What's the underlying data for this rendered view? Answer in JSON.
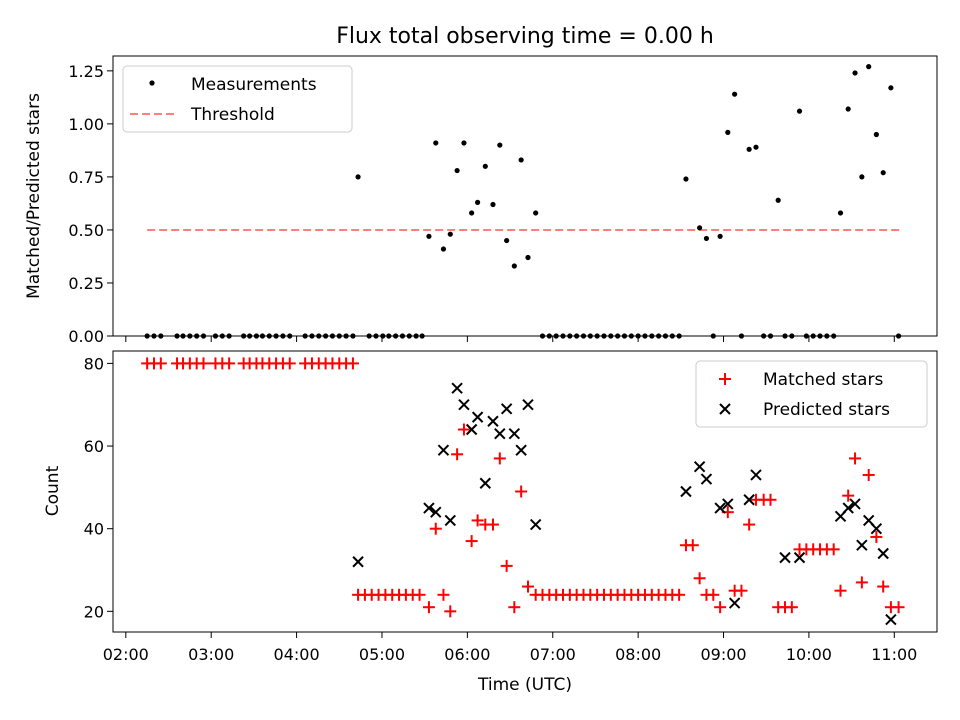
{
  "chart_data": [
    {
      "type": "scatter",
      "title": "Flux total observing time = 0.00 h",
      "xlabel": "",
      "ylabel": "Matched/Predicted stars",
      "xlim": [
        1.85,
        11.5
      ],
      "ylim": [
        0,
        1.32
      ],
      "yticks": [
        0,
        0.25,
        0.5,
        0.75,
        1.0,
        1.25
      ],
      "ytick_labels": [
        "0.00",
        "0.25",
        "0.50",
        "0.75",
        "1.00",
        "1.25"
      ],
      "legend": {
        "position": "top-left",
        "entries": [
          "Measurements",
          "Threshold"
        ]
      },
      "threshold": {
        "name": "Threshold",
        "value": 0.5,
        "x_range": [
          2.25,
          11.1
        ],
        "color": "#ff7f7f"
      },
      "series": [
        {
          "name": "Measurements",
          "color": "#000000",
          "points": [
            [
              2.25,
              0
            ],
            [
              2.33,
              0
            ],
            [
              2.41,
              0
            ],
            [
              2.6,
              0
            ],
            [
              2.67,
              0
            ],
            [
              2.75,
              0
            ],
            [
              2.83,
              0
            ],
            [
              2.91,
              0
            ],
            [
              3.05,
              0
            ],
            [
              3.13,
              0
            ],
            [
              3.21,
              0
            ],
            [
              3.38,
              0
            ],
            [
              3.45,
              0
            ],
            [
              3.53,
              0
            ],
            [
              3.6,
              0
            ],
            [
              3.68,
              0
            ],
            [
              3.76,
              0
            ],
            [
              3.84,
              0
            ],
            [
              3.92,
              0
            ],
            [
              4.1,
              0
            ],
            [
              4.18,
              0
            ],
            [
              4.26,
              0
            ],
            [
              4.34,
              0
            ],
            [
              4.42,
              0
            ],
            [
              4.5,
              0
            ],
            [
              4.58,
              0
            ],
            [
              4.66,
              0
            ],
            [
              4.72,
              0.75
            ],
            [
              4.85,
              0
            ],
            [
              4.93,
              0
            ],
            [
              5.01,
              0
            ],
            [
              5.08,
              0
            ],
            [
              5.16,
              0
            ],
            [
              5.24,
              0
            ],
            [
              5.32,
              0
            ],
            [
              5.4,
              0
            ],
            [
              5.47,
              0
            ],
            [
              5.55,
              0.47
            ],
            [
              5.63,
              0.91
            ],
            [
              5.72,
              0.41
            ],
            [
              5.8,
              0.48
            ],
            [
              5.88,
              0.78
            ],
            [
              5.96,
              0.91
            ],
            [
              6.05,
              0.58
            ],
            [
              6.12,
              0.63
            ],
            [
              6.21,
              0.8
            ],
            [
              6.3,
              0.62
            ],
            [
              6.38,
              0.9
            ],
            [
              6.46,
              0.45
            ],
            [
              6.55,
              0.33
            ],
            [
              6.63,
              0.83
            ],
            [
              6.71,
              0.37
            ],
            [
              6.8,
              0.58
            ],
            [
              6.88,
              0
            ],
            [
              6.96,
              0
            ],
            [
              7.04,
              0
            ],
            [
              7.12,
              0
            ],
            [
              7.2,
              0
            ],
            [
              7.28,
              0
            ],
            [
              7.36,
              0
            ],
            [
              7.44,
              0
            ],
            [
              7.52,
              0
            ],
            [
              7.6,
              0
            ],
            [
              7.68,
              0
            ],
            [
              7.76,
              0
            ],
            [
              7.84,
              0
            ],
            [
              7.92,
              0
            ],
            [
              8.0,
              0
            ],
            [
              8.08,
              0
            ],
            [
              8.16,
              0
            ],
            [
              8.24,
              0
            ],
            [
              8.32,
              0
            ],
            [
              8.4,
              0
            ],
            [
              8.48,
              0
            ],
            [
              8.56,
              0.74
            ],
            [
              8.72,
              0.51
            ],
            [
              8.8,
              0.46
            ],
            [
              8.88,
              0
            ],
            [
              8.96,
              0.47
            ],
            [
              9.05,
              0.96
            ],
            [
              9.13,
              1.14
            ],
            [
              9.21,
              0
            ],
            [
              9.3,
              0.88
            ],
            [
              9.38,
              0.89
            ],
            [
              9.47,
              0
            ],
            [
              9.55,
              0
            ],
            [
              9.64,
              0.64
            ],
            [
              9.72,
              0
            ],
            [
              9.8,
              0
            ],
            [
              9.89,
              1.06
            ],
            [
              9.97,
              0
            ],
            [
              10.05,
              0
            ],
            [
              10.13,
              0
            ],
            [
              10.21,
              0
            ],
            [
              10.29,
              0
            ],
            [
              10.37,
              0.58
            ],
            [
              10.46,
              1.07
            ],
            [
              10.54,
              1.24
            ],
            [
              10.62,
              0.75
            ],
            [
              10.7,
              1.27
            ],
            [
              10.79,
              0.95
            ],
            [
              10.87,
              0.77
            ],
            [
              10.96,
              1.17
            ],
            [
              11.05,
              0
            ]
          ]
        }
      ]
    },
    {
      "type": "scatter",
      "title": "",
      "xlabel": "Time (UTC)",
      "ylabel": "Count",
      "xlim": [
        1.85,
        11.5
      ],
      "ylim": [
        15,
        83
      ],
      "xticks": [
        2,
        3,
        4,
        5,
        6,
        7,
        8,
        9,
        10,
        11
      ],
      "xtick_labels": [
        "02:00",
        "03:00",
        "04:00",
        "05:00",
        "06:00",
        "07:00",
        "08:00",
        "09:00",
        "10:00",
        "11:00"
      ],
      "yticks": [
        20,
        40,
        60,
        80
      ],
      "ytick_labels": [
        "20",
        "40",
        "60",
        "80"
      ],
      "legend": {
        "position": "top-right",
        "entries": [
          "Matched stars",
          "Predicted stars"
        ]
      },
      "series": [
        {
          "name": "Matched stars",
          "marker": "+",
          "color": "#ff0000",
          "points": [
            [
              2.25,
              80
            ],
            [
              2.33,
              80
            ],
            [
              2.41,
              80
            ],
            [
              2.6,
              80
            ],
            [
              2.67,
              80
            ],
            [
              2.75,
              80
            ],
            [
              2.83,
              80
            ],
            [
              2.91,
              80
            ],
            [
              3.05,
              80
            ],
            [
              3.13,
              80
            ],
            [
              3.21,
              80
            ],
            [
              3.38,
              80
            ],
            [
              3.45,
              80
            ],
            [
              3.53,
              80
            ],
            [
              3.6,
              80
            ],
            [
              3.68,
              80
            ],
            [
              3.76,
              80
            ],
            [
              3.84,
              80
            ],
            [
              3.92,
              80
            ],
            [
              4.1,
              80
            ],
            [
              4.18,
              80
            ],
            [
              4.26,
              80
            ],
            [
              4.34,
              80
            ],
            [
              4.42,
              80
            ],
            [
              4.5,
              80
            ],
            [
              4.58,
              80
            ],
            [
              4.66,
              80
            ],
            [
              4.72,
              24
            ],
            [
              4.8,
              24
            ],
            [
              4.88,
              24
            ],
            [
              4.96,
              24
            ],
            [
              5.04,
              24
            ],
            [
              5.12,
              24
            ],
            [
              5.2,
              24
            ],
            [
              5.28,
              24
            ],
            [
              5.36,
              24
            ],
            [
              5.44,
              24
            ],
            [
              5.55,
              21
            ],
            [
              5.63,
              40
            ],
            [
              5.72,
              24
            ],
            [
              5.8,
              20
            ],
            [
              5.88,
              58
            ],
            [
              5.96,
              64
            ],
            [
              6.05,
              37
            ],
            [
              6.12,
              42
            ],
            [
              6.21,
              41
            ],
            [
              6.3,
              41
            ],
            [
              6.38,
              57
            ],
            [
              6.46,
              31
            ],
            [
              6.55,
              21
            ],
            [
              6.63,
              49
            ],
            [
              6.71,
              26
            ],
            [
              6.8,
              24
            ],
            [
              6.88,
              24
            ],
            [
              6.96,
              24
            ],
            [
              7.04,
              24
            ],
            [
              7.12,
              24
            ],
            [
              7.2,
              24
            ],
            [
              7.28,
              24
            ],
            [
              7.36,
              24
            ],
            [
              7.44,
              24
            ],
            [
              7.52,
              24
            ],
            [
              7.6,
              24
            ],
            [
              7.68,
              24
            ],
            [
              7.76,
              24
            ],
            [
              7.84,
              24
            ],
            [
              7.92,
              24
            ],
            [
              8.0,
              24
            ],
            [
              8.08,
              24
            ],
            [
              8.16,
              24
            ],
            [
              8.24,
              24
            ],
            [
              8.32,
              24
            ],
            [
              8.4,
              24
            ],
            [
              8.48,
              24
            ],
            [
              8.56,
              36
            ],
            [
              8.64,
              36
            ],
            [
              8.72,
              28
            ],
            [
              8.8,
              24
            ],
            [
              8.88,
              24
            ],
            [
              8.96,
              21
            ],
            [
              9.05,
              44
            ],
            [
              9.13,
              25
            ],
            [
              9.21,
              25
            ],
            [
              9.3,
              41
            ],
            [
              9.38,
              47
            ],
            [
              9.47,
              47
            ],
            [
              9.55,
              47
            ],
            [
              9.64,
              21
            ],
            [
              9.72,
              21
            ],
            [
              9.8,
              21
            ],
            [
              9.89,
              35
            ],
            [
              9.97,
              35
            ],
            [
              10.05,
              35
            ],
            [
              10.13,
              35
            ],
            [
              10.21,
              35
            ],
            [
              10.29,
              35
            ],
            [
              10.37,
              25
            ],
            [
              10.46,
              48
            ],
            [
              10.54,
              57
            ],
            [
              10.62,
              27
            ],
            [
              10.7,
              53
            ],
            [
              10.79,
              38
            ],
            [
              10.87,
              26
            ],
            [
              10.96,
              21
            ],
            [
              11.05,
              21
            ]
          ]
        },
        {
          "name": "Predicted stars",
          "marker": "x",
          "color": "#000000",
          "points": [
            [
              4.72,
              32
            ],
            [
              5.55,
              45
            ],
            [
              5.63,
              44
            ],
            [
              5.72,
              59
            ],
            [
              5.8,
              42
            ],
            [
              5.88,
              74
            ],
            [
              5.96,
              70
            ],
            [
              6.05,
              64
            ],
            [
              6.12,
              67
            ],
            [
              6.21,
              51
            ],
            [
              6.3,
              66
            ],
            [
              6.38,
              63
            ],
            [
              6.46,
              69
            ],
            [
              6.55,
              63
            ],
            [
              6.63,
              59
            ],
            [
              6.71,
              70
            ],
            [
              6.8,
              41
            ],
            [
              8.56,
              49
            ],
            [
              8.72,
              55
            ],
            [
              8.8,
              52
            ],
            [
              8.96,
              45
            ],
            [
              9.05,
              46
            ],
            [
              9.13,
              22
            ],
            [
              9.3,
              47
            ],
            [
              9.38,
              53
            ],
            [
              9.72,
              33
            ],
            [
              9.89,
              33
            ],
            [
              10.37,
              43
            ],
            [
              10.46,
              45
            ],
            [
              10.54,
              46
            ],
            [
              10.62,
              36
            ],
            [
              10.7,
              42
            ],
            [
              10.79,
              40
            ],
            [
              10.87,
              34
            ],
            [
              10.96,
              18
            ]
          ]
        }
      ]
    }
  ]
}
